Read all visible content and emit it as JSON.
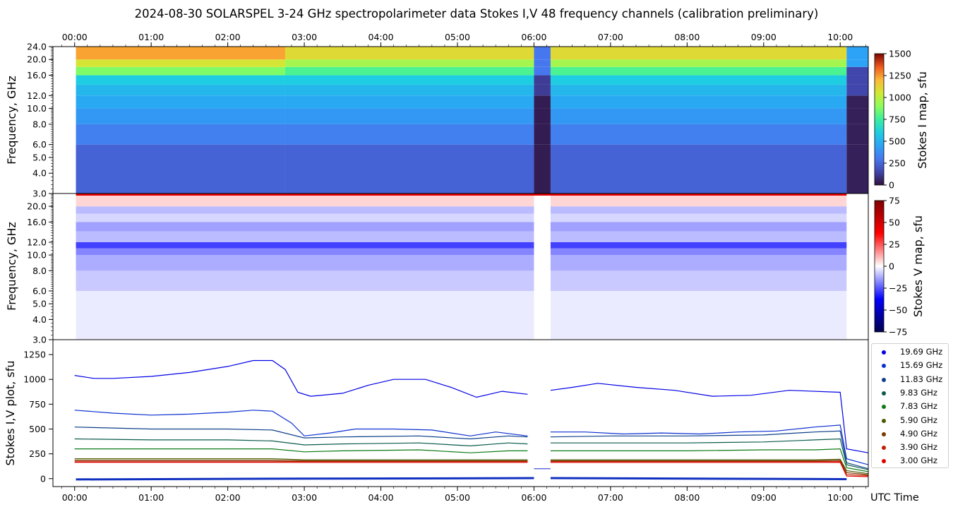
{
  "title": "2024-08-30  SOLARSPEL  3-24 GHz spectropolarimeter data   Stokes I,V   48 frequency channels   (calibration preliminary)",
  "chart_data": [
    {
      "type": "heatmap",
      "panel": "stokes-i-map",
      "ylabel": "Frequency, GHz",
      "yticks": [
        "24.0",
        "20.0",
        "16.0",
        "12.0",
        "10.0",
        "8.0",
        "6.0",
        "5.0",
        "4.0",
        "3.0"
      ],
      "ylim": [
        3.0,
        24.0
      ],
      "yscale": "log",
      "colorbar_label": "Stokes I map, sfu",
      "colorbar_ticks": [
        "0",
        "250",
        "500",
        "750",
        "1000",
        "1250",
        "1500"
      ],
      "colorbar_range": [
        0,
        1500
      ],
      "colormap": "turbo",
      "data_start": "00:01",
      "data_end": "10:05",
      "gaps": [
        [
          "06:00",
          "06:13"
        ]
      ],
      "bands_sfu": [
        {
          "fmin": 3.0,
          "fmax": 6.0,
          "value": 240
        },
        {
          "fmin": 6.0,
          "fmax": 8.0,
          "value": 330
        },
        {
          "fmin": 8.0,
          "fmax": 10.0,
          "value": 410
        },
        {
          "fmin": 10.0,
          "fmax": 12.0,
          "value": 470
        },
        {
          "fmin": 12.0,
          "fmax": 14.0,
          "value": 520
        },
        {
          "fmin": 14.0,
          "fmax": 16.0,
          "value": 600
        },
        {
          "fmin": 16.0,
          "fmax": 18.0,
          "value": 780
        },
        {
          "fmin": 18.0,
          "fmax": 20.0,
          "value": 950
        },
        {
          "fmin": 20.0,
          "fmax": 24.0,
          "value": 1100
        }
      ]
    },
    {
      "type": "heatmap",
      "panel": "stokes-v-map",
      "ylabel": "Frequency, GHz",
      "yticks": [
        "20.0",
        "16.0",
        "12.0",
        "10.0",
        "8.0",
        "6.0",
        "5.0",
        "4.0",
        "3.0"
      ],
      "ylim": [
        3.0,
        24.0
      ],
      "yscale": "log",
      "colorbar_label": "Stokes V map, sfu",
      "colorbar_ticks": [
        "75",
        "50",
        "25",
        "0",
        "−25",
        "−50",
        "−75"
      ],
      "colorbar_range": [
        -75,
        75
      ],
      "colormap": "seismic"
    },
    {
      "type": "line",
      "panel": "stokes-iv-plot",
      "ylabel": "Stokes I,V plot, sfu",
      "xlabel": "UTC Time",
      "yticks": [
        "0",
        "250",
        "500",
        "750",
        "1000",
        "1250"
      ],
      "ylim": [
        -80,
        1400
      ],
      "xticks": [
        "00:00",
        "01:00",
        "02:00",
        "03:00",
        "04:00",
        "05:00",
        "06:00",
        "07:00",
        "08:00",
        "09:00",
        "10:00"
      ],
      "xlim": [
        "23:43",
        "10:22"
      ],
      "gap": [
        "06:00",
        "06:13"
      ],
      "series": [
        {
          "name": "19.69 GHz",
          "color": "#0000e6",
          "points": [
            [
              "00:00",
              1040
            ],
            [
              "00:15",
              1010
            ],
            [
              "00:30",
              1010
            ],
            [
              "01:00",
              1030
            ],
            [
              "01:30",
              1070
            ],
            [
              "02:00",
              1130
            ],
            [
              "02:20",
              1190
            ],
            [
              "02:35",
              1190
            ],
            [
              "02:45",
              1100
            ],
            [
              "02:55",
              870
            ],
            [
              "03:05",
              830
            ],
            [
              "03:30",
              860
            ],
            [
              "03:50",
              940
            ],
            [
              "04:10",
              1000
            ],
            [
              "04:35",
              1000
            ],
            [
              "04:55",
              920
            ],
            [
              "05:15",
              820
            ],
            [
              "05:35",
              880
            ],
            [
              "05:55",
              850
            ],
            [
              "06:13",
              890
            ],
            [
              "06:30",
              920
            ],
            [
              "06:50",
              960
            ],
            [
              "07:20",
              920
            ],
            [
              "07:50",
              890
            ],
            [
              "08:20",
              830
            ],
            [
              "08:50",
              840
            ],
            [
              "09:20",
              890
            ],
            [
              "10:00",
              870
            ],
            [
              "10:05",
              300
            ],
            [
              "10:22",
              260
            ]
          ]
        },
        {
          "name": "15.69 GHz",
          "color": "#0a2fd0",
          "points": [
            [
              "00:00",
              690
            ],
            [
              "00:30",
              660
            ],
            [
              "01:00",
              640
            ],
            [
              "01:30",
              650
            ],
            [
              "02:00",
              670
            ],
            [
              "02:20",
              690
            ],
            [
              "02:35",
              680
            ],
            [
              "02:50",
              560
            ],
            [
              "03:00",
              430
            ],
            [
              "03:20",
              460
            ],
            [
              "03:40",
              500
            ],
            [
              "04:10",
              500
            ],
            [
              "04:40",
              490
            ],
            [
              "05:10",
              430
            ],
            [
              "05:30",
              470
            ],
            [
              "05:55",
              430
            ],
            [
              "06:13",
              470
            ],
            [
              "06:40",
              470
            ],
            [
              "07:10",
              450
            ],
            [
              "07:40",
              460
            ],
            [
              "08:10",
              450
            ],
            [
              "08:40",
              470
            ],
            [
              "09:10",
              480
            ],
            [
              "09:40",
              520
            ],
            [
              "10:00",
              540
            ],
            [
              "10:05",
              200
            ],
            [
              "10:22",
              140
            ]
          ]
        },
        {
          "name": "11.83 GHz",
          "color": "#0d3f8a",
          "points": [
            [
              "00:00",
              520
            ],
            [
              "01:00",
              500
            ],
            [
              "02:00",
              500
            ],
            [
              "02:35",
              490
            ],
            [
              "03:00",
              410
            ],
            [
              "03:30",
              420
            ],
            [
              "04:30",
              430
            ],
            [
              "05:10",
              400
            ],
            [
              "05:40",
              430
            ],
            [
              "05:55",
              420
            ],
            [
              "06:13",
              420
            ],
            [
              "07:00",
              430
            ],
            [
              "08:00",
              430
            ],
            [
              "09:00",
              440
            ],
            [
              "09:40",
              470
            ],
            [
              "10:00",
              480
            ],
            [
              "10:05",
              160
            ],
            [
              "10:22",
              100
            ]
          ]
        },
        {
          "name": "9.83 GHz",
          "color": "#0a5a4a",
          "points": [
            [
              "00:00",
              400
            ],
            [
              "01:00",
              390
            ],
            [
              "02:00",
              390
            ],
            [
              "02:35",
              380
            ],
            [
              "03:00",
              340
            ],
            [
              "03:30",
              350
            ],
            [
              "04:30",
              360
            ],
            [
              "05:10",
              330
            ],
            [
              "05:40",
              360
            ],
            [
              "05:55",
              350
            ],
            [
              "06:13",
              360
            ],
            [
              "07:00",
              360
            ],
            [
              "08:00",
              360
            ],
            [
              "09:00",
              370
            ],
            [
              "09:40",
              390
            ],
            [
              "10:00",
              400
            ],
            [
              "10:05",
              140
            ],
            [
              "10:22",
              90
            ]
          ]
        },
        {
          "name": "7.83 GHz",
          "color": "#0b7a15",
          "points": [
            [
              "00:00",
              300
            ],
            [
              "01:00",
              300
            ],
            [
              "02:00",
              300
            ],
            [
              "02:35",
              300
            ],
            [
              "03:00",
              270
            ],
            [
              "03:30",
              280
            ],
            [
              "04:30",
              290
            ],
            [
              "05:10",
              260
            ],
            [
              "05:40",
              280
            ],
            [
              "05:55",
              280
            ],
            [
              "06:13",
              280
            ],
            [
              "07:00",
              280
            ],
            [
              "08:00",
              280
            ],
            [
              "09:00",
              290
            ],
            [
              "09:40",
              290
            ],
            [
              "10:00",
              300
            ],
            [
              "10:05",
              110
            ],
            [
              "10:22",
              70
            ]
          ]
        },
        {
          "name": "5.90 GHz",
          "color": "#4a5a00",
          "points": [
            [
              "00:00",
              200
            ],
            [
              "02:35",
              200
            ],
            [
              "03:00",
              190
            ],
            [
              "04:30",
              190
            ],
            [
              "05:55",
              190
            ],
            [
              "06:13",
              190
            ],
            [
              "08:00",
              190
            ],
            [
              "09:40",
              190
            ],
            [
              "10:00",
              195
            ],
            [
              "10:05",
              80
            ],
            [
              "10:22",
              50
            ]
          ]
        },
        {
          "name": "4.90 GHz",
          "color": "#7a3a00",
          "points": [
            [
              "00:00",
              185
            ],
            [
              "02:35",
              185
            ],
            [
              "03:00",
              180
            ],
            [
              "04:30",
              180
            ],
            [
              "05:55",
              180
            ],
            [
              "06:13",
              180
            ],
            [
              "08:00",
              180
            ],
            [
              "09:40",
              180
            ],
            [
              "10:00",
              185
            ],
            [
              "10:05",
              60
            ],
            [
              "10:22",
              40
            ]
          ]
        },
        {
          "name": "3.90 GHz",
          "color": "#c02000",
          "points": [
            [
              "00:00",
              175
            ],
            [
              "02:35",
              175
            ],
            [
              "03:00",
              172
            ],
            [
              "04:30",
              172
            ],
            [
              "05:55",
              172
            ],
            [
              "06:13",
              172
            ],
            [
              "08:00",
              172
            ],
            [
              "09:40",
              172
            ],
            [
              "10:00",
              175
            ],
            [
              "10:05",
              40
            ],
            [
              "10:22",
              30
            ]
          ]
        },
        {
          "name": "3.00 GHz",
          "color": "#e00000",
          "points": [
            [
              "00:00",
              165
            ],
            [
              "02:35",
              165
            ],
            [
              "03:00",
              163
            ],
            [
              "04:30",
              163
            ],
            [
              "05:55",
              163
            ],
            [
              "06:13",
              163
            ],
            [
              "08:00",
              163
            ],
            [
              "09:40",
              163
            ],
            [
              "10:00",
              165
            ],
            [
              "10:05",
              25
            ],
            [
              "10:22",
              20
            ]
          ]
        }
      ],
      "stokes_v_near_zero": true
    }
  ],
  "top_axis_ticks": [
    "00:00",
    "01:00",
    "02:00",
    "03:00",
    "04:00",
    "05:00",
    "06:00",
    "07:00",
    "08:00",
    "09:00",
    "10:00"
  ]
}
